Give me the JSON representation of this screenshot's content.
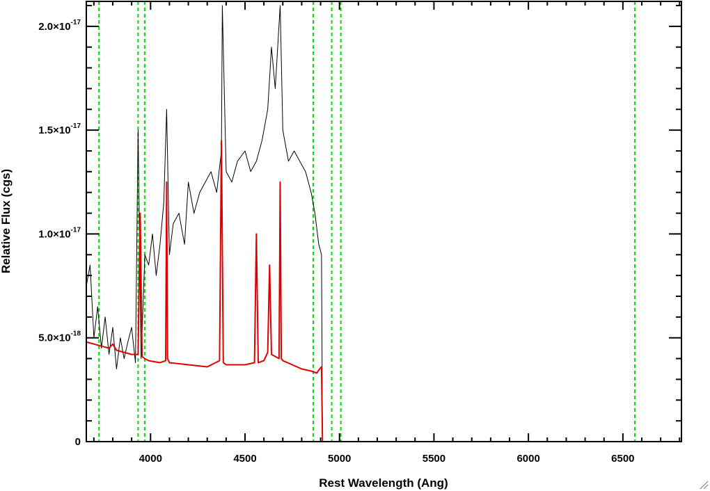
{
  "chart_data": {
    "type": "line",
    "title": "",
    "xlabel": "Rest Wavelength (Ang)",
    "ylabel": "Relative Flux (cgs)",
    "xlim": [
      3660,
      6810
    ],
    "ylim": [
      0,
      2.12e-17
    ],
    "x_ticks": [
      4000,
      4500,
      5000,
      5500,
      6000,
      6500
    ],
    "x_tick_labels": [
      "4000",
      "4500",
      "5000",
      "5500",
      "6000",
      "6500"
    ],
    "y_ticks": [
      0,
      5e-18,
      1e-17,
      1.5e-17,
      2e-17
    ],
    "y_tick_labels": [
      {
        "mantissa": "0",
        "exponent": ""
      },
      {
        "mantissa": "5.0×10",
        "exponent": "-18"
      },
      {
        "mantissa": "1.0×10",
        "exponent": "-17"
      },
      {
        "mantissa": "1.5×10",
        "exponent": "-17"
      },
      {
        "mantissa": "2.0×10",
        "exponent": "-17"
      }
    ],
    "reference_lines": {
      "color": "#00dd00",
      "style": "dashed",
      "x": [
        3727,
        3934,
        3969,
        4861,
        4959,
        5007,
        6563
      ]
    },
    "series": [
      {
        "color": "#000000",
        "x": [
          3660,
          3680,
          3700,
          3720,
          3740,
          3760,
          3780,
          3800,
          3820,
          3840,
          3860,
          3880,
          3900,
          3920,
          3934,
          3950,
          3970,
          3990,
          4010,
          4030,
          4050,
          4070,
          4085,
          4100,
          4120,
          4150,
          4180,
          4200,
          4230,
          4260,
          4290,
          4320,
          4350,
          4375,
          4380,
          4400,
          4430,
          4460,
          4500,
          4530,
          4560,
          4590,
          4620,
          4640,
          4660,
          4686,
          4700,
          4730,
          4760,
          4790,
          4820,
          4850,
          4870,
          4890,
          4905,
          4910
        ],
        "y": [
          7.5e-18,
          8.5e-18,
          5e-18,
          6.5e-18,
          4.5e-18,
          6e-18,
          4.2e-18,
          5.5e-18,
          3.5e-18,
          5e-18,
          4e-18,
          4.8e-18,
          5.5e-18,
          3.8e-18,
          1.5e-17,
          4e-18,
          9e-18,
          8.5e-18,
          1e-17,
          8e-18,
          9.5e-18,
          1.15e-17,
          1.6e-17,
          9e-18,
          1.05e-17,
          1.1e-17,
          9.5e-18,
          1.25e-17,
          1.1e-17,
          1.2e-17,
          1.25e-17,
          1.3e-17,
          1.2e-17,
          1.4e-17,
          2.1e-17,
          1.3e-17,
          1.25e-17,
          1.35e-17,
          1.4e-17,
          1.3e-17,
          1.35e-17,
          1.45e-17,
          1.6e-17,
          1.9e-17,
          1.7e-17,
          2.1e-17,
          1.5e-17,
          1.35e-17,
          1.4e-17,
          1.35e-17,
          1.3e-17,
          1.2e-17,
          1.1e-17,
          9.5e-18,
          9e-18,
          0
        ]
      },
      {
        "color": "#dd0000",
        "x": [
          3660,
          3700,
          3740,
          3780,
          3800,
          3820,
          3860,
          3900,
          3934,
          3945,
          3955,
          3969,
          3990,
          4050,
          4080,
          4085,
          4090,
          4100,
          4200,
          4300,
          4365,
          4375,
          4385,
          4400,
          4500,
          4550,
          4560,
          4570,
          4600,
          4620,
          4630,
          4640,
          4680,
          4686,
          4692,
          4700,
          4750,
          4800,
          4850,
          4880,
          4895,
          4905,
          4910,
          4920,
          5000,
          5500,
          6000,
          6500,
          6810
        ],
        "y": [
          4.8e-18,
          4.7e-18,
          4.6e-18,
          4.5e-18,
          4.7e-18,
          4.4e-18,
          4.3e-18,
          4.2e-18,
          4.2e-18,
          1.1e-17,
          4.1e-18,
          4e-18,
          3.9e-18,
          3.8e-18,
          3.9e-18,
          1.25e-17,
          4e-18,
          3.8e-18,
          3.7e-18,
          3.6e-18,
          3.9e-18,
          1.45e-17,
          3.8e-18,
          3.7e-18,
          3.7e-18,
          3.8e-18,
          1e-17,
          3.8e-18,
          3.9e-18,
          4.3e-18,
          8.5e-18,
          4.2e-18,
          4e-18,
          1.25e-17,
          4e-18,
          3.9e-18,
          3.7e-18,
          3.5e-18,
          3.4e-18,
          3.3e-18,
          3.5e-18,
          3.6e-18,
          0,
          0,
          0,
          0,
          0,
          0,
          0
        ]
      }
    ]
  }
}
